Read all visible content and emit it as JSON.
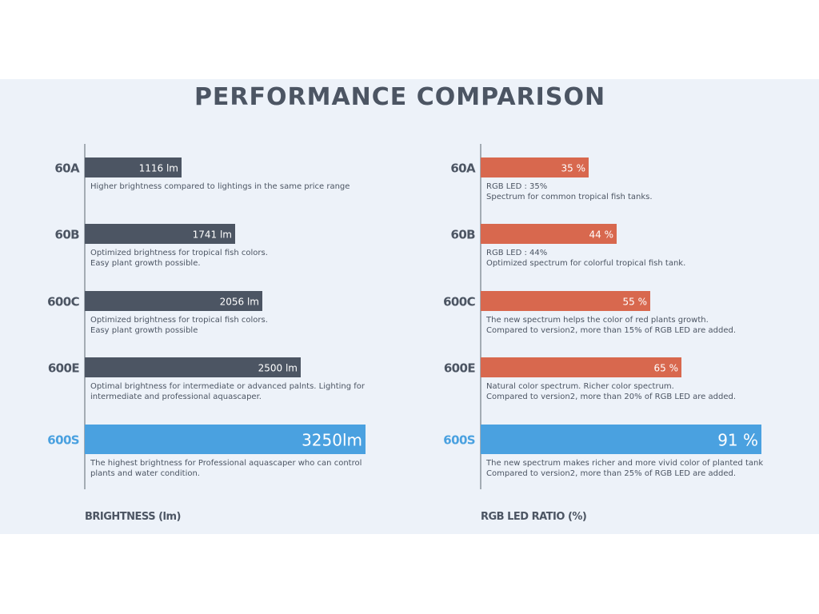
{
  "title": "PERFORMANCE COMPARISON",
  "colors": {
    "panel_bg": "#edf2f9",
    "text_dark": "#4c5563",
    "bar_gray": "#4c5563",
    "bar_orange": "#d8684e",
    "bar_highlight": "#4aa1e0",
    "axis": "#8c949e",
    "desc_text": "#4c5563"
  },
  "chart_data": [
    {
      "type": "bar",
      "orientation": "horizontal",
      "title": "",
      "xlabel": "BRIGHTNESS (lm)",
      "ylabel": "",
      "xlim": [
        0,
        3250
      ],
      "categories": [
        "60A",
        "60B",
        "600C",
        "600E",
        "600S"
      ],
      "values": [
        1116,
        1741,
        2056,
        2500,
        3250
      ],
      "value_labels": [
        "1116 lm",
        "1741 lm",
        "2056 lm",
        "2500 lm",
        "3250lm"
      ],
      "highlight": "600S",
      "descriptions": [
        [
          "Higher brightness compared to lightings in the same price range"
        ],
        [
          "Optimized brightness for tropical fish colors.",
          "Easy plant growth possible."
        ],
        [
          "Optimized brightness for tropical fish colors.",
          "Easy plant growth possible"
        ],
        [
          "Optimal brightness for intermediate or advanced palnts. Lighting for",
          "intermediate and professional aquascaper."
        ],
        [
          "The highest brightness for Professional aquascaper who can control",
          "plants and water condition."
        ]
      ],
      "grid": false
    },
    {
      "type": "bar",
      "orientation": "horizontal",
      "title": "",
      "xlabel": "RGB LED RATIO (%)",
      "ylabel": "",
      "xlim": [
        0,
        91
      ],
      "categories": [
        "60A",
        "60B",
        "600C",
        "600E",
        "600S"
      ],
      "values": [
        35,
        44,
        55,
        65,
        91
      ],
      "value_labels": [
        "35 %",
        "44 %",
        "55 %",
        "65 %",
        "91 %"
      ],
      "highlight": "600S",
      "descriptions": [
        [
          "RGB LED : 35%",
          "Spectrum for common tropical fish tanks."
        ],
        [
          "RGB LED : 44%",
          "Optimized spectrum for colorful tropical fish tank."
        ],
        [
          "The new spectrum helps the color of red plants growth.",
          "Compared to version2, more than 15% of RGB LED are added."
        ],
        [
          "Natural color spectrum. Richer color spectrum.",
          "Compared to version2, more than 20% of RGB LED are added."
        ],
        [
          "The new spectrum makes richer and more vivid color of planted tank",
          "Compared to version2, more than 25% of RGB LED are added."
        ]
      ],
      "grid": false
    }
  ]
}
